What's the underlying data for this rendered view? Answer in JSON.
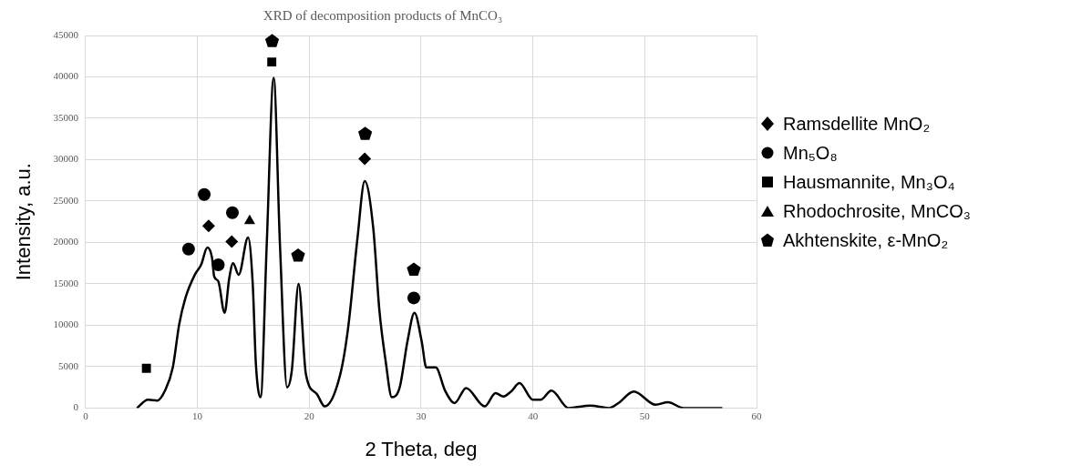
{
  "chart_data": {
    "type": "line",
    "title": "XRD of decomposition products of MnCO₃",
    "xlabel": "2 Theta, deg",
    "ylabel": "Intensity, a.u.",
    "xlim": [
      0,
      60
    ],
    "xticks": [
      0,
      10,
      20,
      30,
      40,
      50,
      60
    ],
    "ylim": [
      0,
      45000
    ],
    "yticks": [
      0,
      5000,
      10000,
      15000,
      20000,
      25000,
      30000,
      35000,
      40000,
      45000
    ],
    "grid": true,
    "legend": "right",
    "series": [
      {
        "color": "#000000",
        "marker": "none",
        "x": [
          4.6,
          5.58,
          6.42,
          7.1,
          7.8,
          8.37,
          8.93,
          9.77,
          10.33,
          10.89,
          11.3,
          11.5,
          11.87,
          12.43,
          12.85,
          13.19,
          13.69,
          14.53,
          14.95,
          15.23,
          15.65,
          16.2,
          16.82,
          17.38,
          18.02,
          18.44,
          19.05,
          19.7,
          20.68,
          21.38,
          22.78,
          23.48,
          24.32,
          24.96,
          25.72,
          26.28,
          26.83,
          27.39,
          28.09,
          28.79,
          29.41,
          30.05,
          30.47,
          31.31,
          32.15,
          32.99,
          34.03,
          35.69,
          36.66,
          37.36,
          38.05,
          38.8,
          40.0,
          40.69,
          41.66,
          43.19,
          45.14,
          46.8,
          47.64,
          49.03,
          50.97,
          52.08,
          53.47,
          56.94
        ],
        "values": [
          0,
          1000,
          900,
          2100,
          4900,
          10100,
          13300,
          16100,
          17300,
          19400,
          18200,
          15900,
          15300,
          11500,
          15700,
          17500,
          16100,
          20600,
          14900,
          5300,
          1300,
          19800,
          39900,
          19800,
          2500,
          4500,
          15000,
          4100,
          1700,
          200,
          4100,
          9700,
          20600,
          27400,
          21800,
          11700,
          5700,
          1300,
          2500,
          8100,
          11500,
          8100,
          4900,
          4900,
          2100,
          600,
          2400,
          200,
          1800,
          1400,
          2000,
          3000,
          1000,
          1000,
          2100,
          0,
          300,
          0,
          600,
          2000,
          400,
          700,
          0,
          0
        ]
      },
      {
        "type": "scatter",
        "name": "Ramsdellite MnO₂",
        "color": "#000000",
        "marker": "diamond",
        "x": [
          11.0,
          13.07,
          24.96
        ],
        "values": [
          22000,
          20100,
          30100
        ]
      },
      {
        "type": "scatter",
        "name": "Mn₅O₈",
        "color": "#000000",
        "marker": "circle",
        "x": [
          9.21,
          10.61,
          11.87,
          13.13,
          29.35
        ],
        "values": [
          19200,
          25800,
          17300,
          23600,
          13300
        ]
      },
      {
        "type": "scatter",
        "name": "Hausmannite, Mn₃O₄",
        "color": "#000000",
        "marker": "square",
        "x": [
          5.44,
          16.65
        ],
        "values": [
          4800,
          41800
        ]
      },
      {
        "type": "scatter",
        "name": "Rhodochrosite, MnCO₃",
        "color": "#000000",
        "marker": "triangle",
        "x": [
          14.67
        ],
        "values": [
          22600
        ]
      },
      {
        "type": "scatter",
        "name": "Akhtenskite, ε-MnO₂",
        "color": "#000000",
        "x": [
          16.68,
          19.0,
          25.0,
          29.35
        ],
        "values": [
          44300,
          18400,
          33100,
          16700
        ]
      }
    ]
  }
}
